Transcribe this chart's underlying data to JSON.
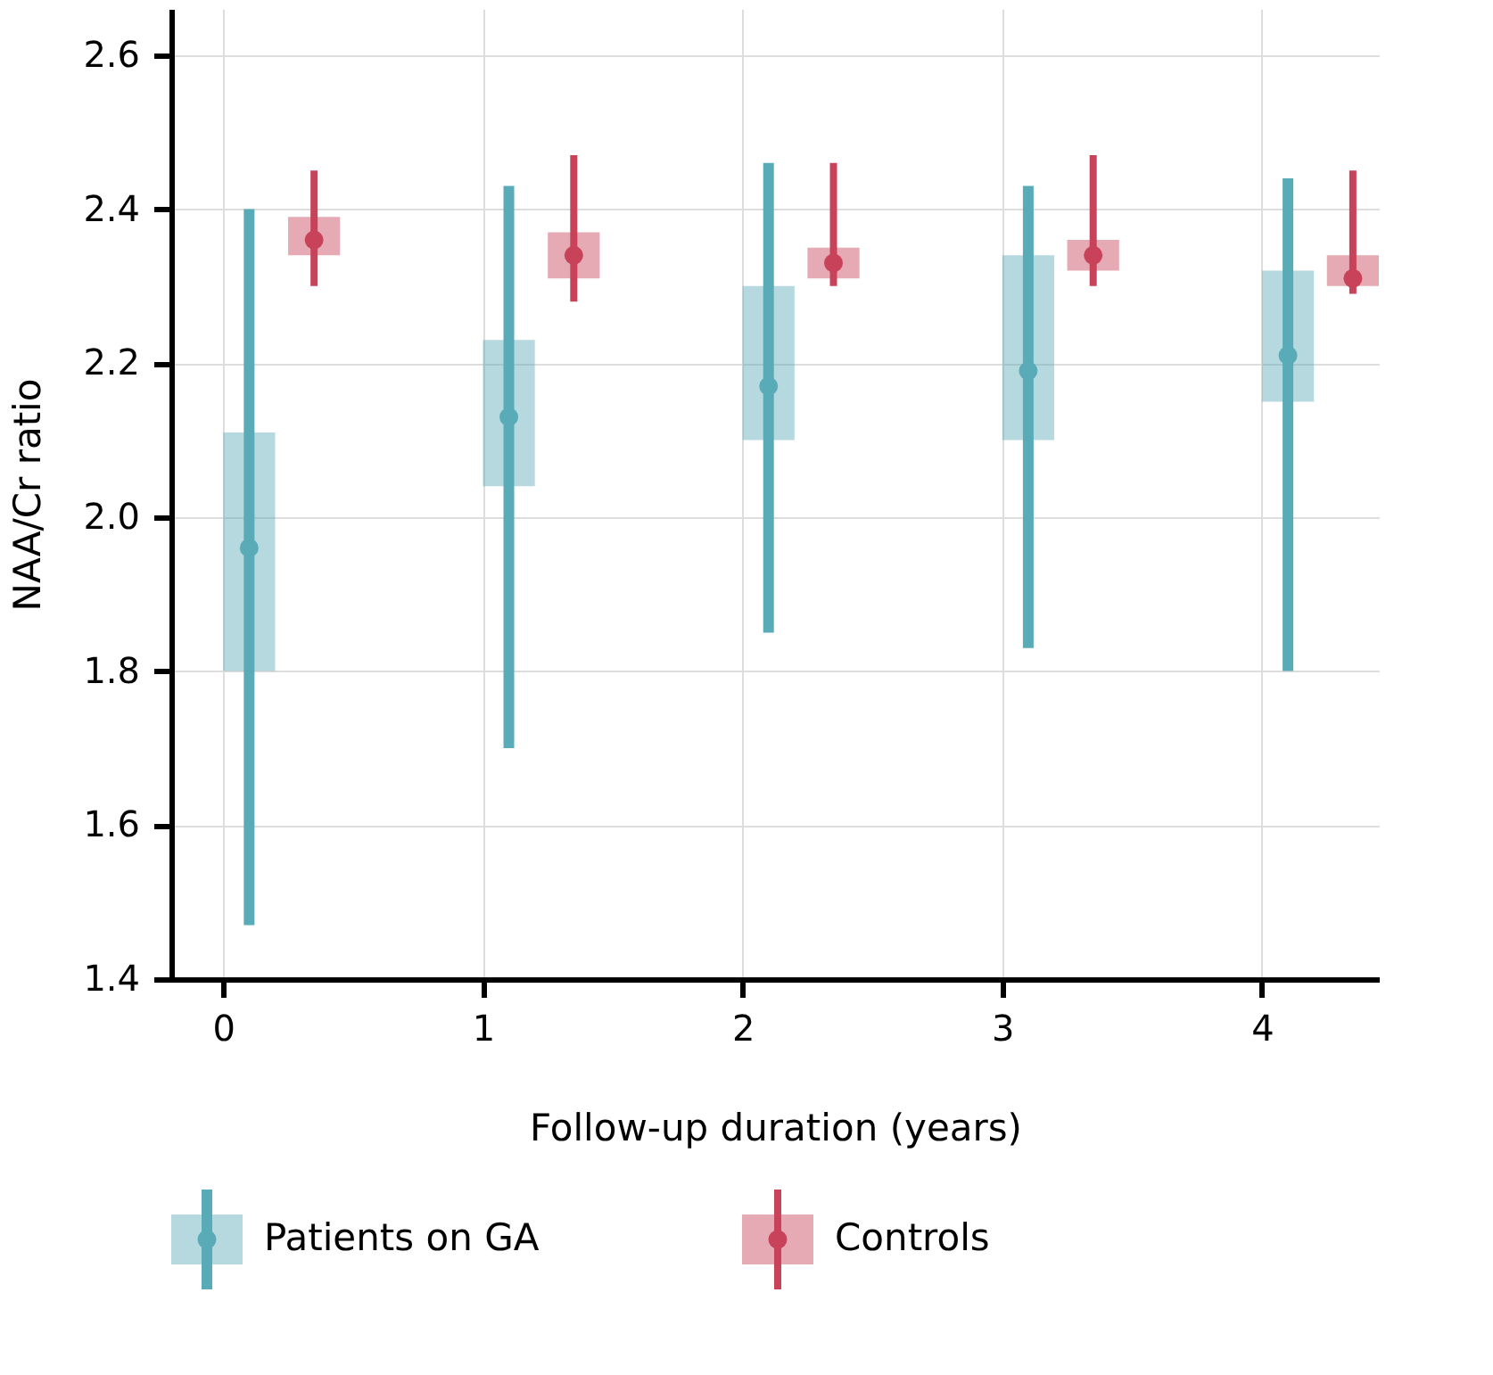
{
  "chart_data": {
    "type": "box",
    "xlabel": "Follow-up duration (years)",
    "ylabel": "NAA/Cr ratio",
    "x": [
      0,
      1,
      2,
      3,
      4
    ],
    "xlim": [
      -0.2,
      4.45
    ],
    "xticks": [
      0,
      1,
      2,
      3,
      4
    ],
    "ylim": [
      1.4,
      2.66
    ],
    "yticks": [
      1.4,
      1.6,
      1.8,
      {
        "value": 2.0,
        "label": "2.0"
      },
      2.2,
      2.4,
      2.6
    ],
    "grid": true,
    "legend": "bottom",
    "marker": "circle",
    "series": [
      {
        "name": "Patients on GA",
        "color": "#5aabb8",
        "boxes": [
          {
            "low": 1.47,
            "q1": 1.8,
            "median": 1.96,
            "q3": 2.11,
            "high": 2.4
          },
          {
            "low": 1.7,
            "q1": 2.04,
            "median": 2.13,
            "q3": 2.23,
            "high": 2.43
          },
          {
            "low": 1.85,
            "q1": 2.1,
            "median": 2.17,
            "q3": 2.3,
            "high": 2.46
          },
          {
            "low": 1.83,
            "q1": 2.1,
            "median": 2.19,
            "q3": 2.34,
            "high": 2.43
          },
          {
            "low": 1.8,
            "q1": 2.15,
            "median": 2.21,
            "q3": 2.32,
            "high": 2.44
          }
        ]
      },
      {
        "name": "Controls",
        "color": "#c8435a",
        "boxes": [
          {
            "low": 2.3,
            "q1": 2.34,
            "median": 2.36,
            "q3": 2.39,
            "high": 2.45
          },
          {
            "low": 2.28,
            "q1": 2.31,
            "median": 2.34,
            "q3": 2.37,
            "high": 2.47
          },
          {
            "low": 2.3,
            "q1": 2.31,
            "median": 2.33,
            "q3": 2.35,
            "high": 2.46
          },
          {
            "low": 2.3,
            "q1": 2.32,
            "median": 2.34,
            "q3": 2.36,
            "high": 2.47
          },
          {
            "low": 2.29,
            "q1": 2.3,
            "median": 2.31,
            "q3": 2.34,
            "high": 2.45
          }
        ]
      }
    ]
  }
}
